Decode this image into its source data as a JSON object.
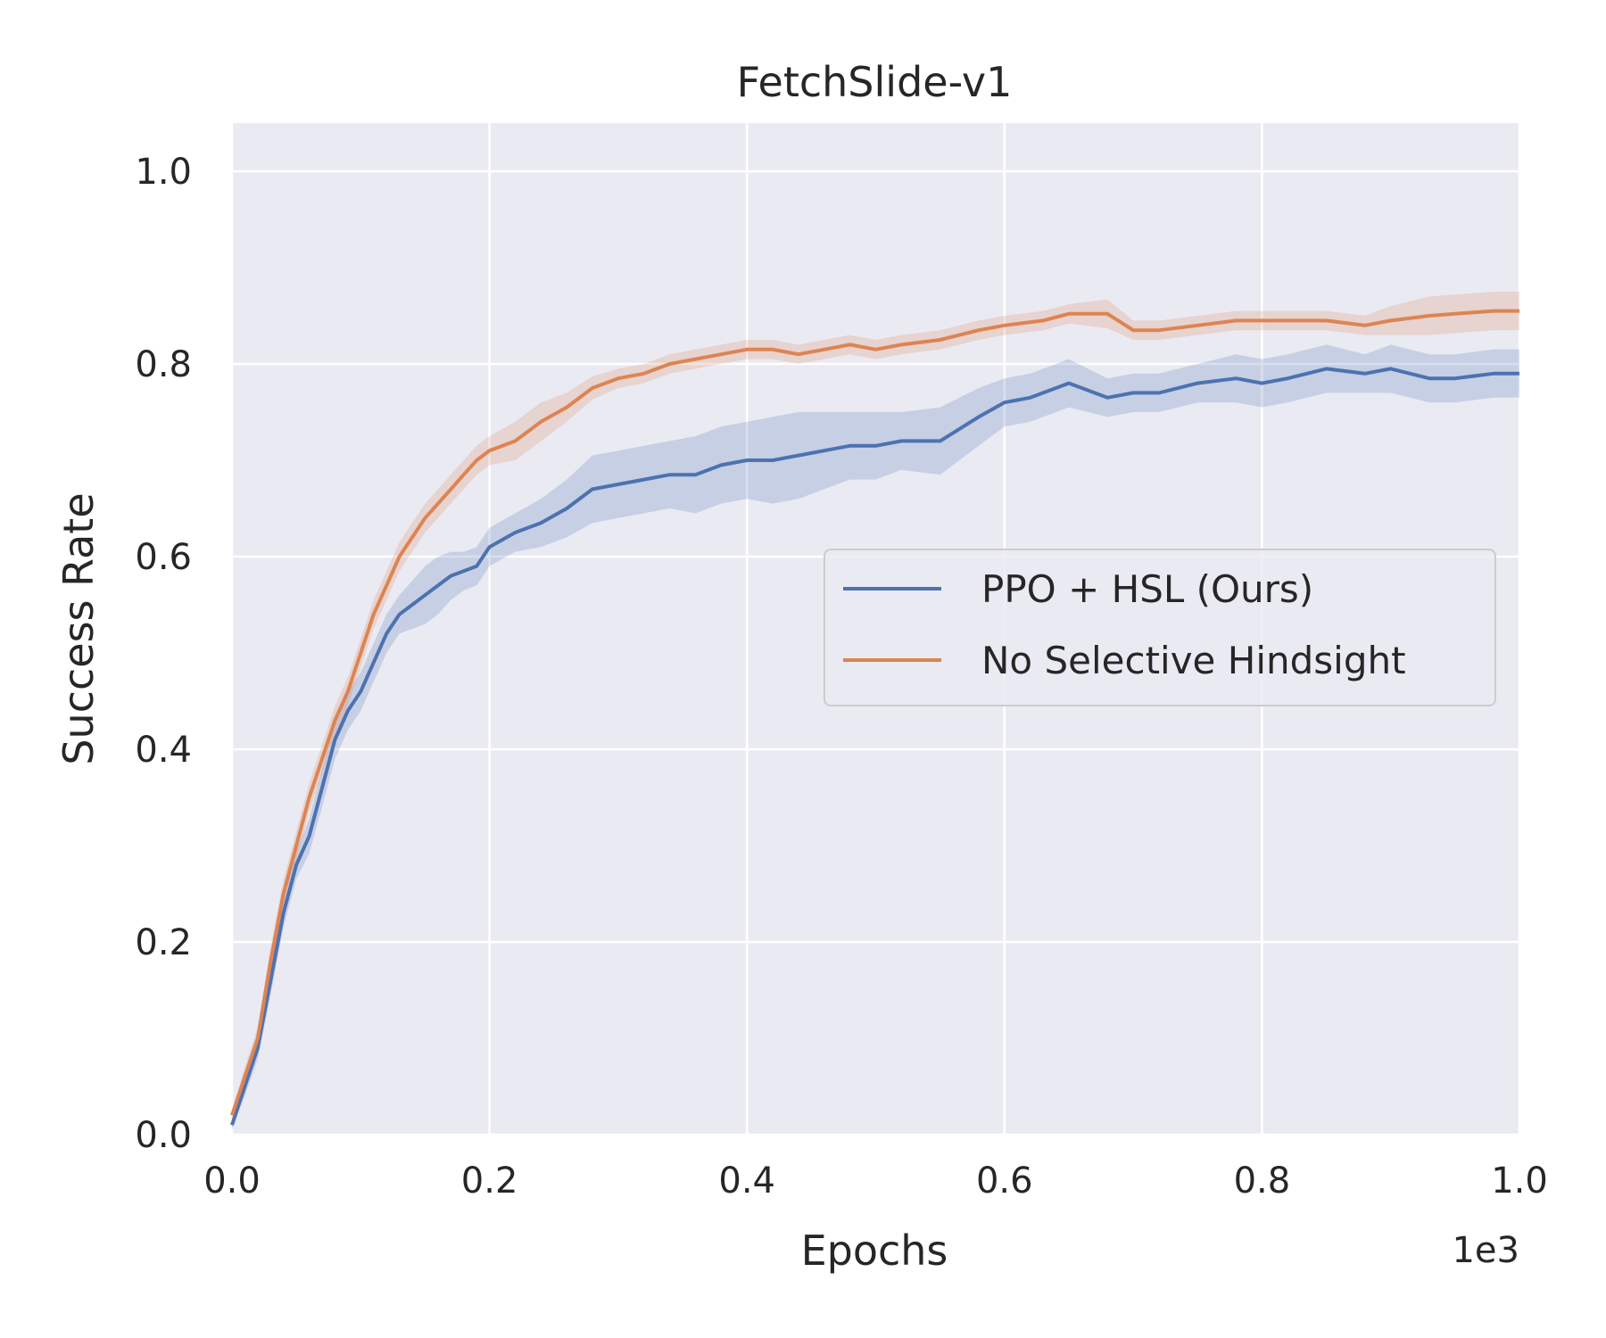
{
  "chart_data": {
    "type": "line",
    "title": "FetchSlide-v1",
    "xlabel": "Epochs",
    "ylabel": "Success Rate",
    "x_offset_label": "1e3",
    "xlim": [
      0.0,
      1.0
    ],
    "ylim": [
      0.0,
      1.05
    ],
    "x_ticks": [
      "0.0",
      "0.2",
      "0.4",
      "0.6",
      "0.8",
      "1.0"
    ],
    "y_ticks": [
      "0.0",
      "0.2",
      "0.4",
      "0.6",
      "0.8",
      "1.0"
    ],
    "grid": true,
    "legend_position": "center-right",
    "background_color": "#eaeaf2",
    "grid_color": "#ffffff",
    "series": [
      {
        "name": "PPO + HSL (Ours)",
        "color": "#4c72b0",
        "x": [
          0.0,
          0.01,
          0.02,
          0.03,
          0.04,
          0.05,
          0.06,
          0.07,
          0.08,
          0.09,
          0.1,
          0.11,
          0.12,
          0.13,
          0.14,
          0.15,
          0.16,
          0.17,
          0.18,
          0.19,
          0.2,
          0.22,
          0.24,
          0.26,
          0.28,
          0.3,
          0.32,
          0.34,
          0.36,
          0.38,
          0.4,
          0.42,
          0.44,
          0.46,
          0.48,
          0.5,
          0.52,
          0.55,
          0.58,
          0.6,
          0.62,
          0.65,
          0.68,
          0.7,
          0.72,
          0.75,
          0.78,
          0.8,
          0.82,
          0.85,
          0.88,
          0.9,
          0.93,
          0.95,
          0.98,
          1.0
        ],
        "values": [
          0.01,
          0.05,
          0.09,
          0.16,
          0.23,
          0.28,
          0.31,
          0.36,
          0.41,
          0.44,
          0.46,
          0.49,
          0.52,
          0.54,
          0.55,
          0.56,
          0.57,
          0.58,
          0.585,
          0.59,
          0.61,
          0.625,
          0.635,
          0.65,
          0.67,
          0.675,
          0.68,
          0.685,
          0.685,
          0.695,
          0.7,
          0.7,
          0.705,
          0.71,
          0.715,
          0.715,
          0.72,
          0.72,
          0.745,
          0.76,
          0.765,
          0.78,
          0.765,
          0.77,
          0.77,
          0.78,
          0.785,
          0.78,
          0.785,
          0.795,
          0.79,
          0.795,
          0.785,
          0.785,
          0.79,
          0.79
        ],
        "band_width": [
          0.005,
          0.01,
          0.012,
          0.015,
          0.015,
          0.015,
          0.018,
          0.02,
          0.02,
          0.02,
          0.02,
          0.02,
          0.02,
          0.02,
          0.025,
          0.03,
          0.03,
          0.025,
          0.02,
          0.02,
          0.02,
          0.02,
          0.025,
          0.03,
          0.035,
          0.035,
          0.035,
          0.035,
          0.04,
          0.04,
          0.04,
          0.045,
          0.045,
          0.04,
          0.035,
          0.035,
          0.03,
          0.035,
          0.03,
          0.025,
          0.025,
          0.025,
          0.02,
          0.02,
          0.02,
          0.02,
          0.025,
          0.025,
          0.025,
          0.025,
          0.02,
          0.025,
          0.025,
          0.025,
          0.025,
          0.025
        ]
      },
      {
        "name": "No Selective Hindsight",
        "color": "#dd8452",
        "x": [
          0.0,
          0.01,
          0.02,
          0.03,
          0.04,
          0.05,
          0.06,
          0.07,
          0.08,
          0.09,
          0.1,
          0.11,
          0.12,
          0.13,
          0.14,
          0.15,
          0.16,
          0.17,
          0.18,
          0.19,
          0.2,
          0.22,
          0.24,
          0.26,
          0.28,
          0.3,
          0.32,
          0.34,
          0.36,
          0.38,
          0.4,
          0.42,
          0.44,
          0.46,
          0.48,
          0.5,
          0.52,
          0.55,
          0.58,
          0.6,
          0.63,
          0.65,
          0.68,
          0.7,
          0.72,
          0.75,
          0.78,
          0.8,
          0.82,
          0.85,
          0.88,
          0.9,
          0.93,
          0.95,
          0.98,
          1.0
        ],
        "values": [
          0.02,
          0.06,
          0.1,
          0.18,
          0.25,
          0.3,
          0.35,
          0.39,
          0.43,
          0.46,
          0.5,
          0.54,
          0.57,
          0.6,
          0.62,
          0.64,
          0.655,
          0.67,
          0.685,
          0.7,
          0.71,
          0.72,
          0.74,
          0.755,
          0.775,
          0.785,
          0.79,
          0.8,
          0.805,
          0.81,
          0.815,
          0.815,
          0.81,
          0.815,
          0.82,
          0.815,
          0.82,
          0.825,
          0.835,
          0.84,
          0.845,
          0.852,
          0.852,
          0.835,
          0.835,
          0.84,
          0.845,
          0.845,
          0.845,
          0.845,
          0.84,
          0.845,
          0.85,
          0.852,
          0.855,
          0.855
        ],
        "band_width": [
          0.005,
          0.01,
          0.012,
          0.015,
          0.015,
          0.015,
          0.015,
          0.015,
          0.015,
          0.015,
          0.015,
          0.015,
          0.015,
          0.015,
          0.015,
          0.015,
          0.015,
          0.015,
          0.015,
          0.015,
          0.015,
          0.02,
          0.02,
          0.015,
          0.012,
          0.01,
          0.01,
          0.01,
          0.01,
          0.01,
          0.01,
          0.01,
          0.01,
          0.01,
          0.01,
          0.01,
          0.01,
          0.01,
          0.01,
          0.01,
          0.01,
          0.01,
          0.015,
          0.01,
          0.01,
          0.01,
          0.01,
          0.01,
          0.01,
          0.01,
          0.01,
          0.015,
          0.02,
          0.02,
          0.02,
          0.02
        ]
      }
    ]
  }
}
